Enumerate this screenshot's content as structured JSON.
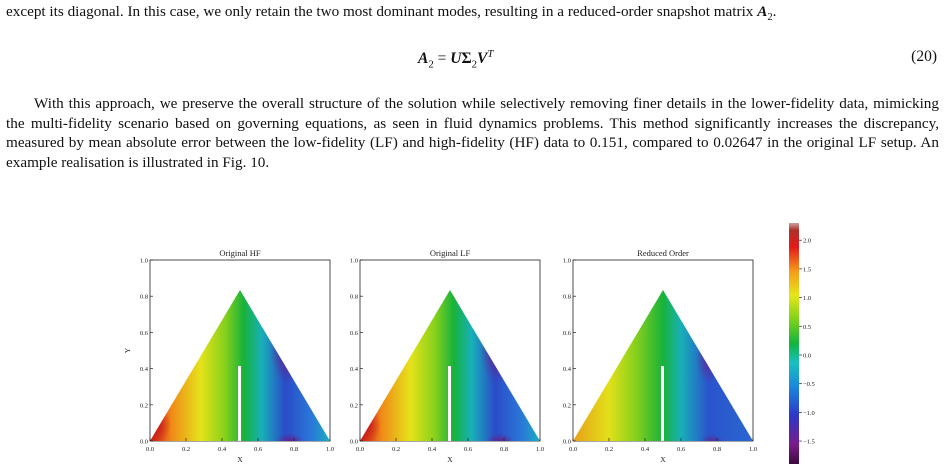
{
  "text": {
    "para1_a": "except its diagonal. In this case, we only retain the two most dominant modes, resulting in a reduced-order snapshot matrix ",
    "para1_A": "A",
    "para1_sub": "2",
    "para1_end": ".",
    "para2": "With this approach, we preserve the overall structure of the solution while selectively removing finer details in the lower-fidelity data, mimicking the multi-fidelity scenario based on governing equations, as seen in fluid dynamics problems. This method significantly increases the discrepancy, measured by mean absolute error between the low-fidelity (LF) and high-fidelity (HF) data to 0.151, compared to 0.02647 in the original LF setup. An example realisation is illustrated in Fig. 10."
  },
  "equation": {
    "lhs": "A",
    "lhs_sub": "2",
    "eq": " = ",
    "u": "U",
    "sigma": "Σ",
    "sigma_sub": "2",
    "v": "V",
    "v_sup": "T",
    "number": "(20)"
  },
  "figure": {
    "panels": [
      {
        "title": "Original HF"
      },
      {
        "title": "Original LF"
      },
      {
        "title": "Reduced Order"
      }
    ],
    "x_ticks": [
      "0.0",
      "0.2",
      "0.4",
      "0.6",
      "0.8",
      "1.0"
    ],
    "y_ticks": [
      "0.0",
      "0.2",
      "0.4",
      "0.6",
      "0.8",
      "1.0"
    ],
    "xlabel": "X",
    "ylabel": "Y",
    "colorbar_ticks": [
      "2.0",
      "1.5",
      "1.0",
      "0.5",
      "0.0",
      "−0.5",
      "−1.0",
      "−1.5"
    ],
    "colorbar_range": [
      -1.9,
      2.3
    ],
    "colormap": [
      "#3a0a3e",
      "#7a1c8a",
      "#2d37c8",
      "#1a86dc",
      "#19c0c0",
      "#11b43c",
      "#7fd21a",
      "#e6e619",
      "#f59a1a",
      "#e41a1a",
      "#b0302a",
      "#caa0a0"
    ]
  }
}
